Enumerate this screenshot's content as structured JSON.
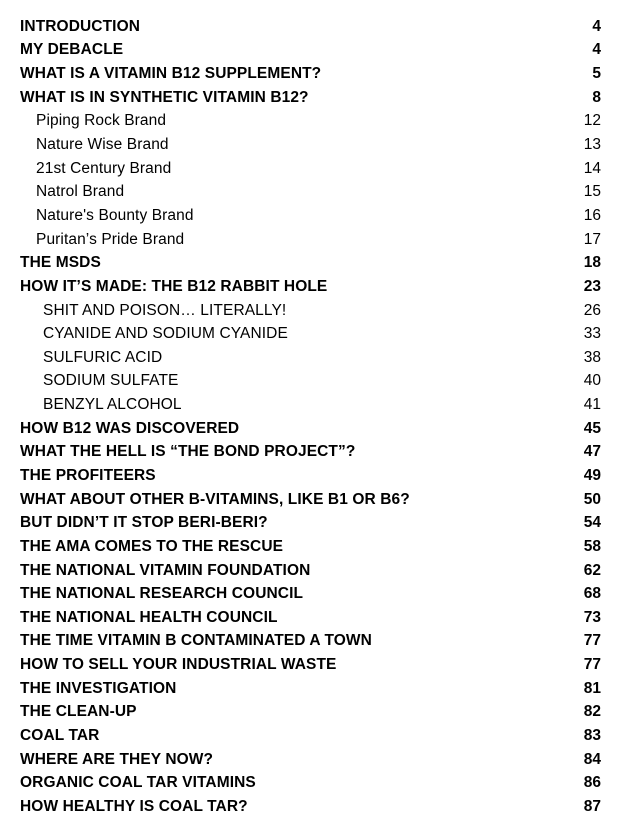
{
  "page": {
    "background": "#ffffff",
    "text_color": "#000000"
  },
  "toc": {
    "entries": [
      {
        "label": "INTRODUCTION",
        "page": "4",
        "level": 1
      },
      {
        "label": "MY DEBACLE",
        "page": "4",
        "level": 1
      },
      {
        "label": "WHAT IS A VITAMIN B12 SUPPLEMENT?",
        "page": "5",
        "level": 1
      },
      {
        "label": "WHAT IS IN SYNTHETIC VITAMIN B12?",
        "page": "8",
        "level": 1
      },
      {
        "label": "Piping Rock Brand",
        "page": "12",
        "level": 2
      },
      {
        "label": "Nature Wise Brand",
        "page": "13",
        "level": 2
      },
      {
        "label": "21st Century Brand",
        "page": "14",
        "level": 2
      },
      {
        "label": "Natrol Brand",
        "page": "15",
        "level": 2
      },
      {
        "label": "Nature's Bounty Brand",
        "page": "16",
        "level": 2
      },
      {
        "label": "Puritan’s Pride Brand",
        "page": "17",
        "level": 2
      },
      {
        "label": "THE MSDS",
        "page": "18",
        "level": 1
      },
      {
        "label": "HOW IT’S MADE: THE B12 RABBIT HOLE",
        "page": "23",
        "level": 1
      },
      {
        "label": "SHIT AND POISON… LITERALLY!",
        "page": "26",
        "level": 3
      },
      {
        "label": "CYANIDE AND SODIUM CYANIDE",
        "page": "33",
        "level": 3
      },
      {
        "label": "SULFURIC ACID",
        "page": "38",
        "level": 3
      },
      {
        "label": "SODIUM SULFATE",
        "page": "40",
        "level": 3
      },
      {
        "label": "BENZYL ALCOHOL",
        "page": "41",
        "level": 3
      },
      {
        "label": "HOW B12 WAS DISCOVERED",
        "page": "45",
        "level": 1
      },
      {
        "label": "WHAT THE HELL IS “THE BOND PROJECT”?",
        "page": "47",
        "level": 1
      },
      {
        "label": "THE PROFITEERS",
        "page": "49",
        "level": 1
      },
      {
        "label": "WHAT ABOUT OTHER B-VITAMINS, LIKE B1 OR B6?",
        "page": "50",
        "level": 1
      },
      {
        "label": "BUT DIDN’T IT STOP BERI-BERI?",
        "page": "54",
        "level": 1
      },
      {
        "label": "THE AMA COMES TO THE RESCUE",
        "page": "58",
        "level": 1
      },
      {
        "label": "THE NATIONAL VITAMIN FOUNDATION",
        "page": "62",
        "level": 1
      },
      {
        "label": "THE NATIONAL RESEARCH COUNCIL",
        "page": "68",
        "level": 1
      },
      {
        "label": "THE NATIONAL HEALTH COUNCIL",
        "page": "73",
        "level": 1
      },
      {
        "label": "THE TIME VITAMIN B CONTAMINATED A TOWN",
        "page": "77",
        "level": 1
      },
      {
        "label": "HOW TO SELL YOUR INDUSTRIAL WASTE",
        "page": "77",
        "level": 1
      },
      {
        "label": "THE INVESTIGATION",
        "page": "81",
        "level": 1
      },
      {
        "label": "THE CLEAN-UP",
        "page": "82",
        "level": 1
      },
      {
        "label": "COAL TAR",
        "page": "83",
        "level": 1
      },
      {
        "label": "WHERE ARE THEY NOW?",
        "page": "84",
        "level": 1
      },
      {
        "label": "ORGANIC COAL TAR VITAMINS",
        "page": "86",
        "level": 1
      },
      {
        "label": "HOW HEALTHY IS COAL TAR?",
        "page": "87",
        "level": 1
      }
    ]
  }
}
